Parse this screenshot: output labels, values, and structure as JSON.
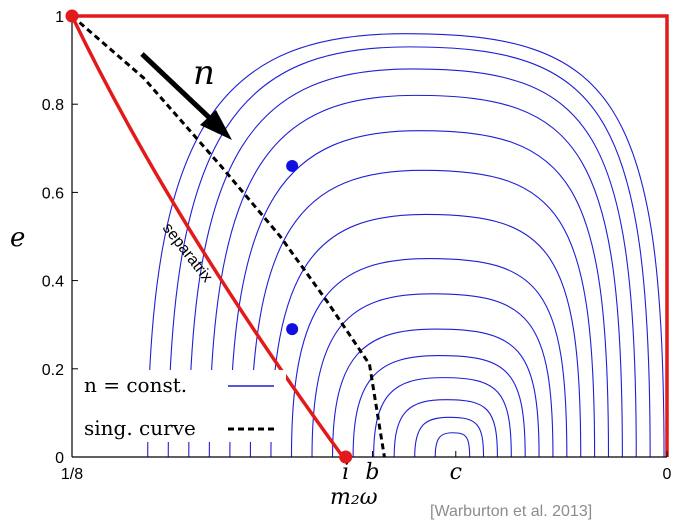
{
  "chart_data": {
    "type": "line",
    "ylabel": "e",
    "xlabel": "m₂ω",
    "ylim": [
      0,
      1
    ],
    "y_ticks": [
      "0",
      "0.2",
      "0.4",
      "0.6",
      "0.8",
      "1"
    ],
    "x_ticks": [
      "1/8",
      "i",
      "b",
      "c",
      "0"
    ],
    "x_tick_styles": [
      "plain",
      "math",
      "math",
      "math",
      "plain"
    ],
    "arrow_label": "n",
    "separatrix_label": "separatrix",
    "legend": [
      {
        "label": "n = const.",
        "style": "solid",
        "color": "#1f1fd6"
      },
      {
        "label": "sing. curve",
        "style": "dashed",
        "color": "#000000"
      }
    ],
    "credit": "[Warburton et al. 2013]",
    "colors": {
      "contour": "#1f1fd6",
      "separatrix": "#e31a1a",
      "boundary": "#e31a1a",
      "singular_curve": "#000000",
      "points": "#1010e0"
    },
    "markers": [
      {
        "name": "corner-top-left",
        "x": 0,
        "y": 1,
        "color": "red"
      },
      {
        "name": "point-i",
        "x": 0.46,
        "y": 0,
        "color": "red"
      },
      {
        "name": "upper-blue-point",
        "x": 0.37,
        "y": 0.66,
        "color": "blue"
      },
      {
        "name": "lower-blue-point",
        "x": 0.37,
        "y": 0.29,
        "color": "blue"
      }
    ],
    "singular_curve": {
      "x": [
        0,
        0.12,
        0.25,
        0.35,
        0.43,
        0.5,
        0.525
      ],
      "y": [
        1,
        0.86,
        0.66,
        0.5,
        0.35,
        0.21,
        0
      ]
    }
  }
}
